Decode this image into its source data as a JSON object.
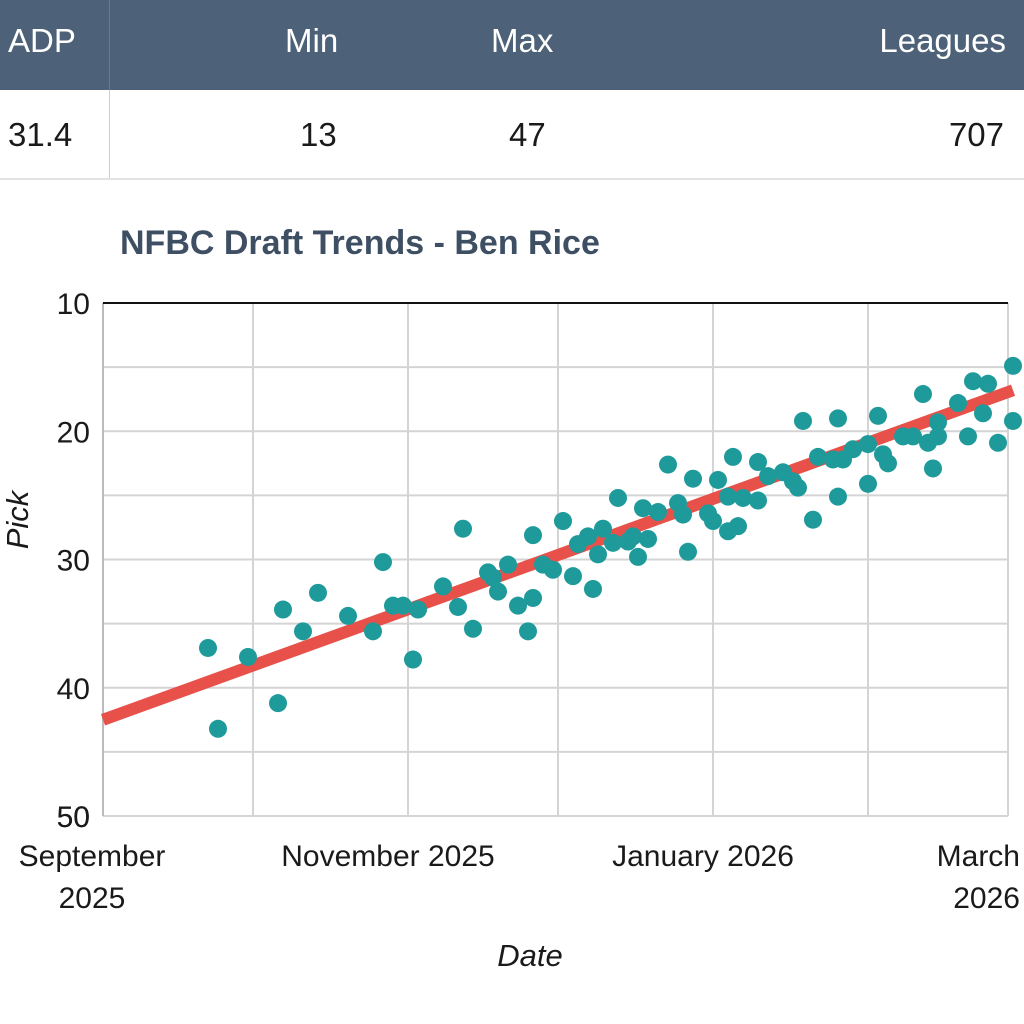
{
  "stats": {
    "headers": {
      "adp": "ADP",
      "min": "Min",
      "max": "Max",
      "leagues": "Leagues"
    },
    "values": {
      "adp": "31.4",
      "min": "13",
      "max": "47",
      "leagues": "707"
    }
  },
  "colors": {
    "header_bg": "#4d6178",
    "points": "#1f9a9a",
    "trend": "#e8504a",
    "grid": "#d4d4d4"
  },
  "chart_data": {
    "type": "scatter",
    "title": "NFBC Draft Trends - Ben Rice",
    "xlabel": "Date",
    "ylabel": "Pick",
    "y_inverted": true,
    "ylim": [
      10,
      50
    ],
    "y_ticks": [
      "10",
      "20",
      "30",
      "40",
      "50",
      "50"
    ],
    "x_ticks": [
      "September 2025",
      "November 2025",
      "January 2026",
      "March 2026"
    ],
    "xlim": [
      "2025-09-01",
      "2026-03-01"
    ],
    "grid": true,
    "points": [
      [
        "2025-09-22",
        36.9
      ],
      [
        "2025-09-24",
        43.2
      ],
      [
        "2025-09-30",
        37.6
      ],
      [
        "2025-10-06",
        41.2
      ],
      [
        "2025-10-07",
        33.9
      ],
      [
        "2025-10-11",
        35.6
      ],
      [
        "2025-10-14",
        32.6
      ],
      [
        "2025-10-20",
        34.4
      ],
      [
        "2025-10-25",
        35.6
      ],
      [
        "2025-10-27",
        30.2
      ],
      [
        "2025-10-29",
        33.6
      ],
      [
        "2025-10-31",
        33.6
      ],
      [
        "2025-11-02",
        37.8
      ],
      [
        "2025-11-03",
        33.9
      ],
      [
        "2025-11-08",
        32.1
      ],
      [
        "2025-11-11",
        33.7
      ],
      [
        "2025-11-12",
        27.6
      ],
      [
        "2025-11-14",
        35.4
      ],
      [
        "2025-11-17",
        31.0
      ],
      [
        "2025-11-18",
        31.4
      ],
      [
        "2025-11-19",
        32.5
      ],
      [
        "2025-11-21",
        30.4
      ],
      [
        "2025-11-23",
        33.6
      ],
      [
        "2025-11-25",
        35.6
      ],
      [
        "2025-11-26",
        28.1
      ],
      [
        "2025-11-26",
        33.0
      ],
      [
        "2025-11-28",
        30.4
      ],
      [
        "2025-11-30",
        30.8
      ],
      [
        "2025-12-02",
        27.0
      ],
      [
        "2025-12-04",
        31.3
      ],
      [
        "2025-12-05",
        28.8
      ],
      [
        "2025-12-07",
        28.2
      ],
      [
        "2025-12-08",
        32.3
      ],
      [
        "2025-12-09",
        29.6
      ],
      [
        "2025-12-10",
        27.6
      ],
      [
        "2025-12-12",
        28.7
      ],
      [
        "2025-12-13",
        25.2
      ],
      [
        "2025-12-15",
        28.6
      ],
      [
        "2025-12-16",
        28.2
      ],
      [
        "2025-12-17",
        29.8
      ],
      [
        "2025-12-18",
        26.0
      ],
      [
        "2025-12-19",
        28.4
      ],
      [
        "2025-12-21",
        26.3
      ],
      [
        "2025-12-23",
        22.6
      ],
      [
        "2025-12-25",
        25.6
      ],
      [
        "2025-12-26",
        26.5
      ],
      [
        "2025-12-27",
        29.4
      ],
      [
        "2025-12-28",
        23.7
      ],
      [
        "2025-12-31",
        26.4
      ],
      [
        "2026-01-01",
        27.0
      ],
      [
        "2026-01-02",
        23.8
      ],
      [
        "2026-01-04",
        27.8
      ],
      [
        "2026-01-04",
        25.1
      ],
      [
        "2026-01-05",
        22.0
      ],
      [
        "2026-01-06",
        27.4
      ],
      [
        "2026-01-07",
        25.2
      ],
      [
        "2026-01-10",
        22.4
      ],
      [
        "2026-01-10",
        25.4
      ],
      [
        "2026-01-12",
        23.5
      ],
      [
        "2026-01-15",
        23.2
      ],
      [
        "2026-01-17",
        23.9
      ],
      [
        "2026-01-18",
        24.4
      ],
      [
        "2026-01-19",
        19.2
      ],
      [
        "2026-01-21",
        26.9
      ],
      [
        "2026-01-22",
        22.0
      ],
      [
        "2026-01-25",
        22.2
      ],
      [
        "2026-01-26",
        25.1
      ],
      [
        "2026-01-26",
        19.0
      ],
      [
        "2026-01-27",
        22.2
      ],
      [
        "2026-01-29",
        21.4
      ],
      [
        "2026-02-01",
        24.1
      ],
      [
        "2026-02-01",
        21.0
      ],
      [
        "2026-02-03",
        18.8
      ],
      [
        "2026-02-04",
        21.8
      ],
      [
        "2026-02-05",
        22.5
      ],
      [
        "2026-02-08",
        20.4
      ],
      [
        "2026-02-10",
        20.4
      ],
      [
        "2026-02-12",
        17.1
      ],
      [
        "2026-02-13",
        20.9
      ],
      [
        "2026-02-14",
        22.9
      ],
      [
        "2026-02-15",
        19.3
      ],
      [
        "2026-02-15",
        20.4
      ],
      [
        "2026-02-19",
        17.8
      ],
      [
        "2026-02-21",
        20.4
      ],
      [
        "2026-02-22",
        16.1
      ],
      [
        "2026-02-24",
        18.6
      ],
      [
        "2026-02-25",
        16.3
      ],
      [
        "2026-02-27",
        20.9
      ],
      [
        "2026-03-02",
        19.2
      ],
      [
        "2026-03-02",
        14.9
      ]
    ],
    "trendline": {
      "start": [
        "2025-09-01",
        42.5
      ],
      "end": [
        "2026-03-02",
        16.8
      ]
    }
  }
}
